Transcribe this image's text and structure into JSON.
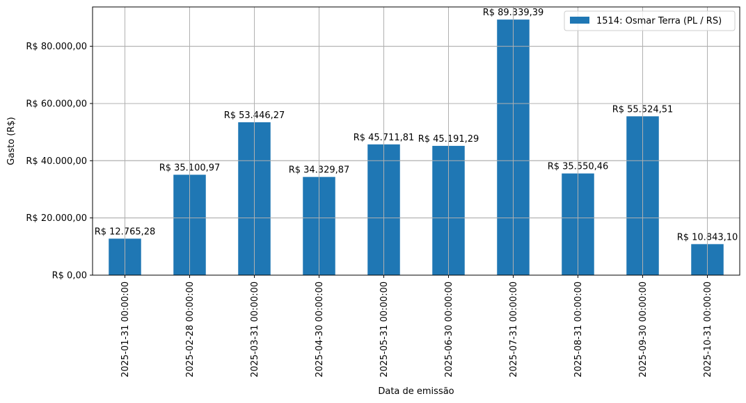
{
  "chart_data": {
    "type": "bar",
    "xlabel": "Data de emissão",
    "ylabel": "Gasto (R$)",
    "ylim": [
      0,
      93750
    ],
    "yticks": [
      0,
      20000,
      40000,
      60000,
      80000
    ],
    "ytick_labels": [
      "R$ 0,00",
      "R$ 20.000,00",
      "R$ 40.000,00",
      "R$ 60.000,00",
      "R$ 80.000,00"
    ],
    "grid": true,
    "legend_position": "top-right",
    "categories": [
      "2025-01-31 00:00:00",
      "2025-02-28 00:00:00",
      "2025-03-31 00:00:00",
      "2025-04-30 00:00:00",
      "2025-05-31 00:00:00",
      "2025-06-30 00:00:00",
      "2025-07-31 00:00:00",
      "2025-08-31 00:00:00",
      "2025-09-30 00:00:00",
      "2025-10-31 00:00:00"
    ],
    "series": [
      {
        "name": "1514: Osmar Terra (PL / RS)",
        "color": "#1f77b4",
        "values": [
          12765.28,
          35100.97,
          53446.27,
          34329.87,
          45711.81,
          45191.29,
          89339.39,
          35550.46,
          55524.51,
          10843.1
        ],
        "value_labels": [
          "R$ 12.765,28",
          "R$ 35.100,97",
          "R$ 53.446,27",
          "R$ 34.329,87",
          "R$ 45.711,81",
          "R$ 45.191,29",
          "R$ 89.339,39",
          "R$ 35.550,46",
          "R$ 55.524,51",
          "R$ 10.843,10"
        ]
      }
    ]
  }
}
